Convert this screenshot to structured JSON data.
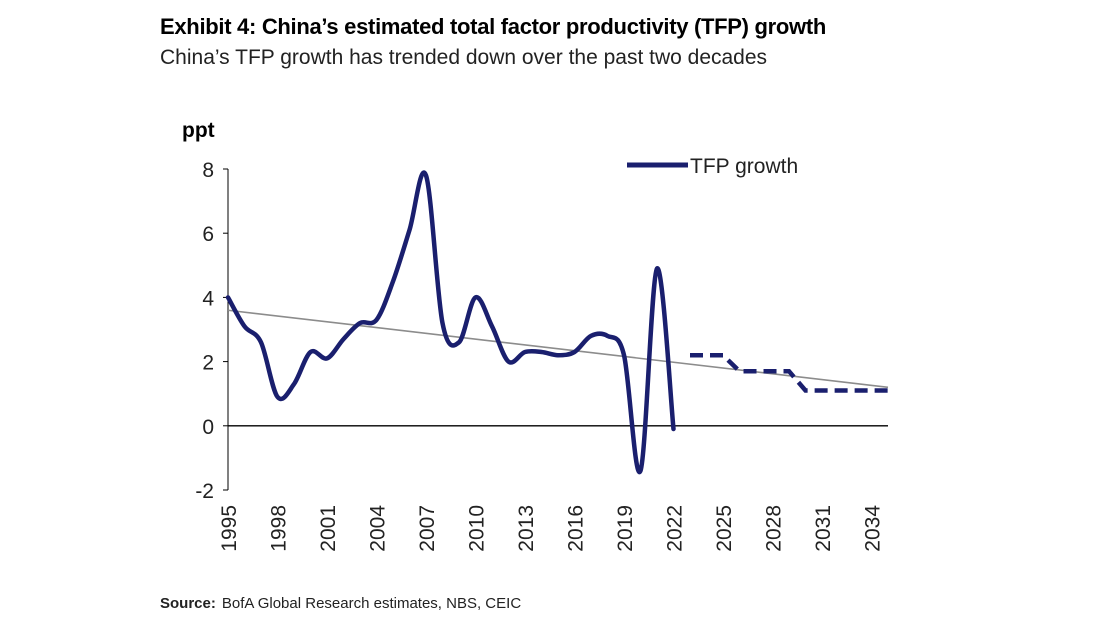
{
  "title": "Exhibit 4: China’s estimated total factor productivity (TFP) growth",
  "subtitle": "China’s TFP growth has trended down over the past two decades",
  "source_label": "Source:",
  "source_text": "BofA Global Research estimates, NBS, CEIC",
  "chart_data": {
    "type": "line",
    "ylabel": "ppt",
    "xlabel": "",
    "ylim": [
      -2,
      8
    ],
    "yticks": [
      -2,
      0,
      2,
      4,
      6,
      8
    ],
    "xlim": [
      1995,
      2035
    ],
    "xticks": [
      "1995",
      "1998",
      "2001",
      "2004",
      "2007",
      "2010",
      "2013",
      "2016",
      "2019",
      "2022",
      "2025",
      "2028",
      "2031",
      "2034"
    ],
    "legend": {
      "position": "top-right",
      "entries": [
        "TFP growth"
      ]
    },
    "colors": {
      "series": "#1a1f6e",
      "trend": "#8c8c8c",
      "axis": "#000000"
    },
    "series": [
      {
        "name": "TFP growth",
        "style": "solid",
        "x": [
          1995,
          1996,
          1997,
          1998,
          1999,
          2000,
          2001,
          2002,
          2003,
          2004,
          2005,
          2006,
          2007,
          2008,
          2009,
          2010,
          2011,
          2012,
          2013,
          2014,
          2015,
          2016,
          2017,
          2018,
          2019,
          2020,
          2021,
          2022
        ],
        "values": [
          4.0,
          3.1,
          2.6,
          0.9,
          1.3,
          2.3,
          2.1,
          2.7,
          3.2,
          3.3,
          4.5,
          6.1,
          7.8,
          3.2,
          2.6,
          4.0,
          3.1,
          2.0,
          2.3,
          2.3,
          2.2,
          2.3,
          2.8,
          2.8,
          2.2,
          -1.4,
          4.9,
          -0.1
        ]
      },
      {
        "name": "",
        "style": "dashed",
        "x": [
          2023,
          2025,
          2026,
          2029,
          2030,
          2035
        ],
        "values": [
          2.2,
          2.2,
          1.7,
          1.7,
          1.1,
          1.1
        ]
      }
    ],
    "trendline": {
      "x": [
        1995,
        2035
      ],
      "values": [
        3.6,
        1.2
      ]
    }
  }
}
